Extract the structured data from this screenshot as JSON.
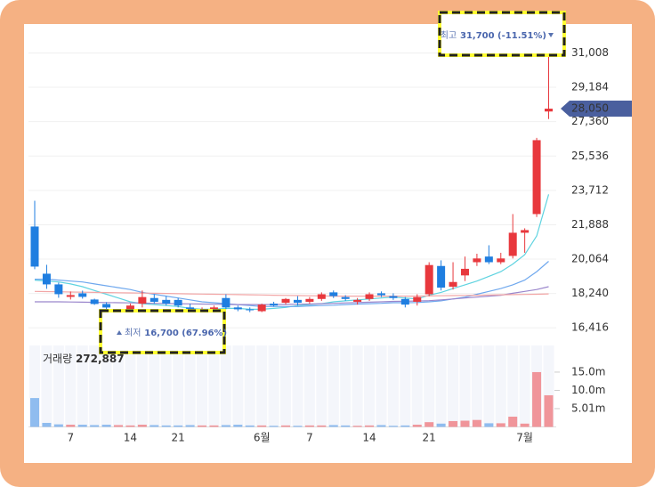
{
  "chart_data": {
    "type": "candlestick",
    "categories": [
      null,
      null,
      null,
      "7",
      null,
      null,
      null,
      null,
      "14",
      null,
      null,
      null,
      "21",
      null,
      null,
      null,
      null,
      null,
      null,
      "6월",
      null,
      null,
      null,
      "7",
      null,
      null,
      null,
      null,
      "14",
      null,
      null,
      null,
      null,
      "21",
      null,
      null,
      null,
      null,
      null,
      null,
      null,
      "7월",
      null,
      null
    ],
    "open": [
      21794,
      19290,
      18723,
      18061,
      18250,
      17920,
      17683,
      16833,
      17400,
      17700,
      18000,
      17900,
      17900,
      17500,
      17300,
      17400,
      18000,
      17500,
      17400,
      17300,
      17700,
      17750,
      17900,
      17800,
      17950,
      18300,
      18050,
      17800,
      17950,
      18250,
      18100,
      17950,
      17800,
      18200,
      19700,
      18600,
      19200,
      19900,
      20200,
      19900,
      20235,
      21464,
      22456,
      27900
    ],
    "high": [
      23164,
      19763,
      18818,
      18345,
      18392,
      17967,
      17778,
      17164,
      17700,
      18400,
      18200,
      18100,
      18000,
      17700,
      17500,
      17600,
      18200,
      17600,
      17500,
      17700,
      17800,
      18000,
      18100,
      18050,
      18300,
      18400,
      18150,
      18000,
      18300,
      18350,
      18250,
      18050,
      18200,
      19900,
      20000,
      19900,
      20200,
      20350,
      20800,
      20400,
      22456,
      21700,
      26500,
      31700
    ],
    "low": [
      19526,
      18487,
      18014,
      17920,
      17967,
      17636,
      17400,
      16700,
      17200,
      17500,
      17700,
      17600,
      17500,
      17100,
      17150,
      17250,
      17400,
      17300,
      17250,
      17250,
      17550,
      17650,
      17600,
      17700,
      17850,
      18000,
      17850,
      17650,
      17850,
      18050,
      17900,
      17500,
      17600,
      18100,
      18400,
      18450,
      18900,
      19700,
      19800,
      19800,
      20100,
      20400,
      22300,
      27500
    ],
    "close": [
      19668,
      18723,
      18203,
      18156,
      18061,
      17683,
      17495,
      17022,
      17600,
      18050,
      17800,
      17700,
      17600,
      17200,
      17400,
      17500,
      17500,
      17400,
      17350,
      17650,
      17600,
      17950,
      17750,
      17950,
      18200,
      18100,
      17950,
      17900,
      18200,
      18150,
      18000,
      17650,
      18050,
      19750,
      18550,
      18850,
      19550,
      20100,
      19900,
      20100,
      21464,
      21605,
      26378,
      28050
    ],
    "volume": [
      7900000,
      1100000,
      700000,
      600000,
      600000,
      500000,
      600000,
      500000,
      400000,
      600000,
      500000,
      400000,
      400000,
      500000,
      400000,
      400000,
      500000,
      600000,
      400000,
      400000,
      300000,
      400000,
      300000,
      400000,
      400000,
      500000,
      400000,
      300000,
      400000,
      500000,
      300000,
      400000,
      600000,
      1300000,
      900000,
      1600000,
      1700000,
      1900000,
      1000000,
      1000000,
      2800000,
      900000,
      15000000,
      8660000
    ],
    "moving_averages": [
      {
        "color": "#5fd3e0",
        "values": [
          18950,
          18900,
          18850,
          18750,
          18600,
          18400,
          18200,
          18000,
          17800,
          17700,
          17650,
          17600,
          17550,
          17450,
          17400,
          17400,
          17450,
          17450,
          17400,
          17400,
          17450,
          17500,
          17600,
          17650,
          17700,
          17800,
          17850,
          17900,
          17950,
          18000,
          18050,
          18000,
          17950,
          18150,
          18300,
          18500,
          18700,
          18900,
          19150,
          19400,
          19800,
          20300,
          21300,
          23500
        ]
      },
      {
        "color": "#6fa8ee",
        "values": [
          19000,
          19000,
          18950,
          18900,
          18850,
          18750,
          18650,
          18550,
          18450,
          18300,
          18200,
          18100,
          18000,
          17900,
          17800,
          17750,
          17700,
          17650,
          17600,
          17550,
          17550,
          17550,
          17550,
          17580,
          17600,
          17620,
          17650,
          17680,
          17700,
          17720,
          17750,
          17750,
          17760,
          17800,
          17850,
          17950,
          18050,
          18200,
          18350,
          18500,
          18700,
          18950,
          19400,
          19950
        ]
      },
      {
        "color": "#9a86cc",
        "values": [
          17800,
          17800,
          17800,
          17790,
          17780,
          17770,
          17760,
          17750,
          17740,
          17730,
          17720,
          17710,
          17700,
          17690,
          17680,
          17670,
          17660,
          17650,
          17650,
          17650,
          17650,
          17660,
          17670,
          17680,
          17700,
          17720,
          17740,
          17760,
          17780,
          17800,
          17820,
          17830,
          17840,
          17860,
          17900,
          17950,
          18000,
          18050,
          18100,
          18150,
          18250,
          18350,
          18450,
          18600
        ]
      },
      {
        "color": "#f2a6a6",
        "values": [
          18350,
          18340,
          18330,
          18320,
          18310,
          18300,
          18290,
          18280,
          18270,
          18260,
          18250,
          18240,
          18230,
          18220,
          18210,
          18200,
          18190,
          18180,
          18170,
          18160,
          18150,
          18140,
          18130,
          18120,
          18110,
          18100,
          18100,
          18100,
          18100,
          18100,
          18100,
          18100,
          18100,
          18110,
          18120,
          18130,
          18140,
          18150,
          18160,
          18170,
          18180,
          18190,
          18200,
          18220
        ]
      }
    ],
    "up_color": "#e8383d",
    "down_color": "#1f7ee0",
    "up_volume_color": "#f0959a",
    "down_volume_color": "#8fbcef",
    "ylim": [
      15700,
      32400
    ],
    "yticks": [
      {
        "value": 16416,
        "label": "16,416"
      },
      {
        "value": 18240,
        "label": "18,240"
      },
      {
        "value": 20064,
        "label": "20,064"
      },
      {
        "value": 21888,
        "label": "21,888"
      },
      {
        "value": 23712,
        "label": "23,712"
      },
      {
        "value": 25536,
        "label": "25,536"
      },
      {
        "value": 27360,
        "label": "27,360"
      },
      {
        "value": 29184,
        "label": "29,184"
      },
      {
        "value": 31008,
        "label": "31,008"
      }
    ],
    "volume_ylim": [
      0,
      22300000
    ],
    "volume_yticks": [
      {
        "value": 5010000,
        "label": "5.01m"
      },
      {
        "value": 10000000,
        "label": "10.0m"
      },
      {
        "value": 15000000,
        "label": "15.0m"
      }
    ],
    "grid": true,
    "current_price": {
      "value": 28050,
      "label": "28,050"
    },
    "volume_title": {
      "label": "거래량",
      "value": "272,887"
    },
    "high_annotation": {
      "label": "최고",
      "text": "31,700 (-11.51%)"
    },
    "low_annotation": {
      "label": "최저",
      "text": "16,700 (67.96%)"
    }
  }
}
